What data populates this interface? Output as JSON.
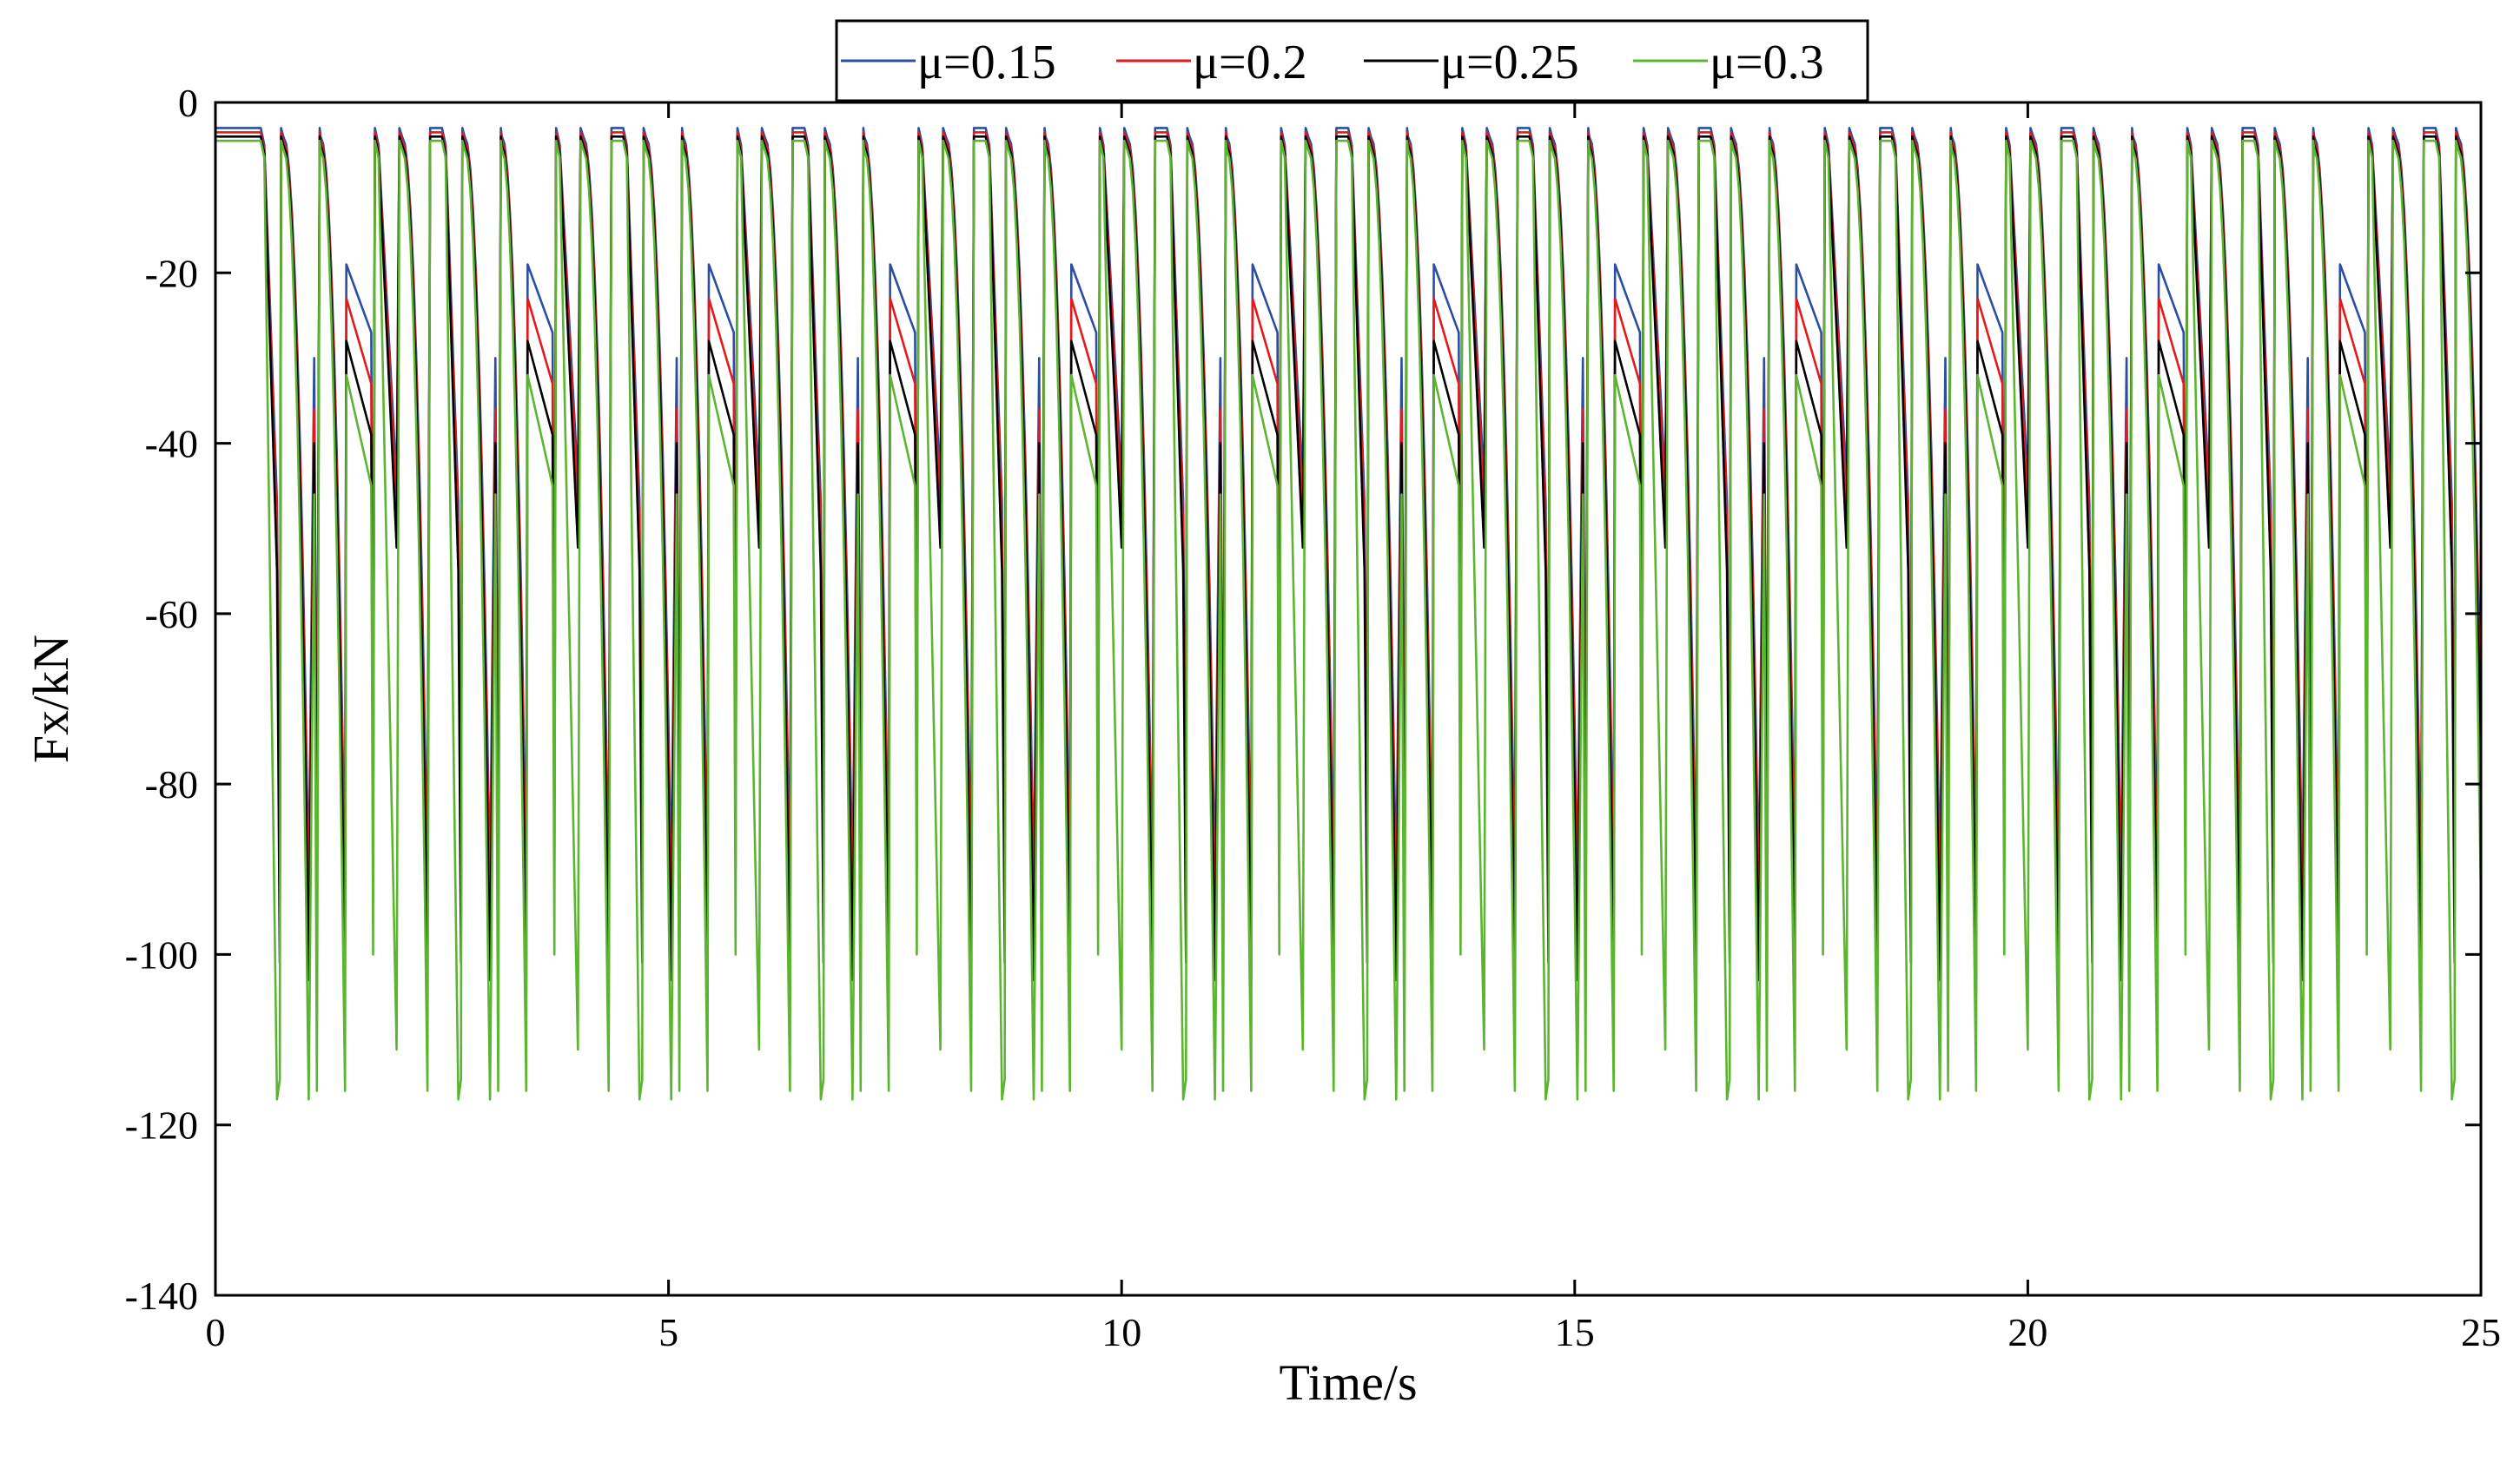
{
  "chart_data": {
    "type": "line",
    "title": "",
    "xlabel": "Time/s",
    "ylabel": "Fx/kN",
    "xlim": [
      0,
      25
    ],
    "ylim": [
      -140,
      0
    ],
    "xticks": [
      0,
      5,
      10,
      15,
      20,
      25
    ],
    "xtick_labels": [
      "0",
      "5",
      "10",
      "15",
      "20",
      "25"
    ],
    "yticks": [
      0,
      -20,
      -40,
      -60,
      -80,
      -100,
      -120,
      -140
    ],
    "ytick_labels": [
      "0",
      "-20",
      "-40",
      "-60",
      "-80",
      "-100",
      "-120",
      "-140"
    ],
    "grid": false,
    "legend_position": "top-center",
    "period": 2,
    "initial_flat_end": 0.5,
    "series": [
      {
        "name": "μ=0.15",
        "color": "#2b4ea2",
        "baseline": -3,
        "v1": -3,
        "v2": -47,
        "v3": -92,
        "v4": -30,
        "v5": -88,
        "v6": -19,
        "v7": -27,
        "v8": -92,
        "v9": -5,
        "v10": -3,
        "v11": -4,
        "v12": -78
      },
      {
        "name": "μ=0.2",
        "color": "#e31a1c",
        "baseline": -3.5,
        "v1": -3.5,
        "v2": -50,
        "v3": -96,
        "v4": -36,
        "v5": -95,
        "v6": -23,
        "v7": -33,
        "v8": -96,
        "v9": -5.5,
        "v10": -3.5,
        "v11": -4.5,
        "v12": -84
      },
      {
        "name": "μ=0.25",
        "color": "#000000",
        "baseline": -4,
        "v1": -4,
        "v2": -55,
        "v3": -103,
        "v4": -40,
        "v5": -101,
        "v6": -28,
        "v7": -39,
        "v8": -103,
        "v9": -6,
        "v10": -4,
        "v11": -5,
        "v12": -90
      },
      {
        "name": "μ=0.3",
        "color": "#5cb531",
        "baseline": -4.5,
        "v1": -4.5,
        "v2": -117,
        "v3": -117,
        "v4": -46,
        "v5": -116,
        "v6": -32,
        "v7": -45,
        "v8": -116,
        "v9": -6.5,
        "v10": -4.5,
        "v11": -5.5,
        "v12": -100
      }
    ]
  }
}
